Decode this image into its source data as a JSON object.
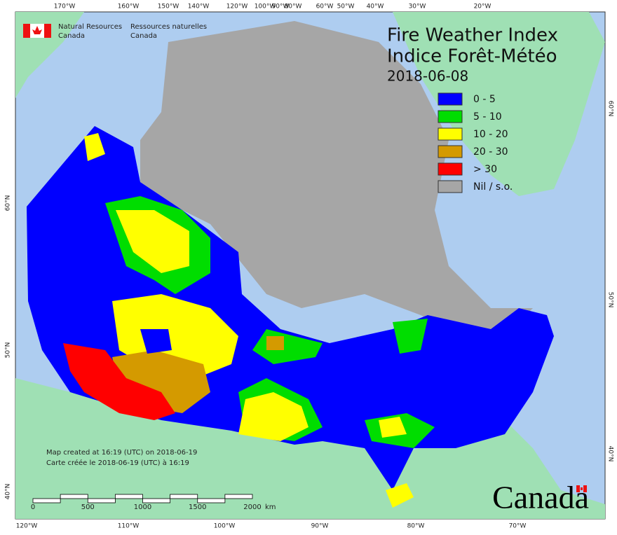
{
  "agency": {
    "en": [
      "Natural Resources",
      "Canada"
    ],
    "fr": [
      "Ressources naturelles",
      "Canada"
    ]
  },
  "title": {
    "en": "Fire Weather Index",
    "fr": "Indice Forêt-Météo",
    "date": "2018-06-08"
  },
  "legend": [
    {
      "label": "0 - 5",
      "color": "#0000ff"
    },
    {
      "label": "5 - 10",
      "color": "#00dd00"
    },
    {
      "label": "10 - 20",
      "color": "#ffff00"
    },
    {
      "label": "20 - 30",
      "color": "#d49a00"
    },
    {
      "label": "> 30",
      "color": "#ff0000"
    },
    {
      "label": "Nil / s.o.",
      "color": "#a6a6a6"
    }
  ],
  "footer": {
    "created_en": "Map created at 16:19 (UTC) on 2018-06-19",
    "created_fr": "Carte créée le 2018-06-19 (UTC) à 16:19"
  },
  "scale_bar": {
    "labels": [
      "0",
      "500",
      "1000",
      "1500",
      "2000"
    ],
    "unit": "km"
  },
  "wordmark": "Canada",
  "graticule": {
    "top": [
      "170°W",
      "160°W",
      "150°W",
      "140°W",
      "120°W",
      "100°W",
      "90°W",
      "80°W",
      "60°W",
      "50°W",
      "40°W",
      "30°W",
      "20°W"
    ],
    "bottom": [
      "120°W",
      "110°W",
      "100°W",
      "90°W",
      "80°W",
      "70°W"
    ],
    "left": [
      "60°N",
      "50°N",
      "40°N"
    ],
    "right": [
      "60°N",
      "50°N",
      "40°N"
    ]
  }
}
